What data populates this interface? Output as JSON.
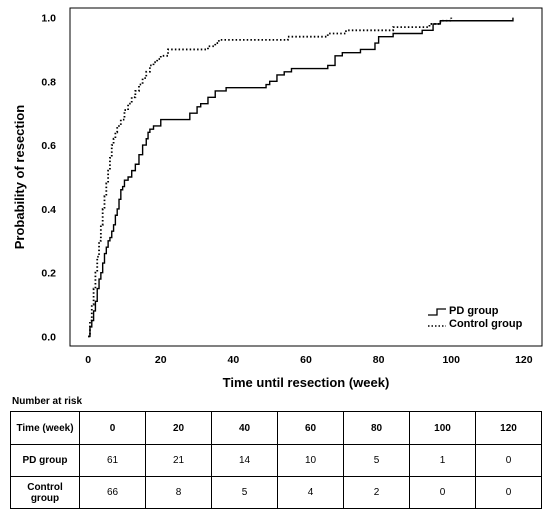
{
  "chart_data": {
    "type": "line",
    "subtype": "step (Kaplan-Meier cumulative incidence)",
    "title": "",
    "xlabel": "Time until resection (week)",
    "ylabel": "Probability of resection",
    "xlim": [
      -5,
      125
    ],
    "ylim": [
      -0.03,
      1.03
    ],
    "xticks": [
      0,
      20,
      40,
      60,
      80,
      100,
      120
    ],
    "yticks": [
      "0.0",
      "0.2",
      "0.4",
      "0.6",
      "0.8",
      "1.0"
    ],
    "grid": false,
    "legend_position": "bottom-right",
    "series": [
      {
        "name": "PD group",
        "line_style": "solid",
        "x": [
          0,
          0.5,
          1,
          1.5,
          2,
          2.5,
          3,
          3.5,
          4,
          4.5,
          5,
          5.5,
          6,
          6.5,
          7,
          7.5,
          8,
          8.5,
          9,
          9.5,
          10,
          11,
          12,
          13,
          14,
          15,
          16,
          16.5,
          17,
          18,
          19,
          20,
          22,
          28,
          30,
          31,
          33,
          35,
          38,
          49,
          50,
          52,
          54,
          56,
          62,
          66,
          68,
          70,
          75,
          79,
          80,
          84,
          90,
          92,
          94,
          95,
          96,
          97,
          117
        ],
        "y": [
          0.0,
          0.03,
          0.05,
          0.08,
          0.11,
          0.15,
          0.18,
          0.2,
          0.23,
          0.26,
          0.28,
          0.3,
          0.31,
          0.33,
          0.35,
          0.38,
          0.4,
          0.43,
          0.46,
          0.47,
          0.49,
          0.5,
          0.52,
          0.54,
          0.57,
          0.6,
          0.62,
          0.64,
          0.65,
          0.66,
          0.66,
          0.68,
          0.68,
          0.7,
          0.72,
          0.73,
          0.75,
          0.77,
          0.78,
          0.79,
          0.8,
          0.82,
          0.83,
          0.84,
          0.84,
          0.85,
          0.88,
          0.89,
          0.9,
          0.92,
          0.94,
          0.95,
          0.95,
          0.96,
          0.96,
          0.98,
          0.98,
          0.99,
          1.0
        ]
      },
      {
        "name": "Control group",
        "line_style": "dotted",
        "x": [
          0,
          0.5,
          1,
          1.5,
          2,
          2.5,
          3,
          3.5,
          4,
          4.5,
          5,
          5.5,
          6,
          6.5,
          7,
          7.5,
          8,
          9,
          10,
          11,
          12,
          13,
          14,
          15,
          16,
          17,
          18,
          19,
          20,
          22,
          28,
          33,
          34,
          35,
          36,
          55,
          66,
          71,
          84,
          94,
          97,
          100
        ],
        "y": [
          0.0,
          0.05,
          0.1,
          0.15,
          0.2,
          0.25,
          0.3,
          0.35,
          0.4,
          0.44,
          0.48,
          0.52,
          0.56,
          0.6,
          0.62,
          0.64,
          0.66,
          0.68,
          0.71,
          0.73,
          0.75,
          0.77,
          0.79,
          0.81,
          0.83,
          0.85,
          0.86,
          0.87,
          0.88,
          0.9,
          0.9,
          0.91,
          0.91,
          0.92,
          0.93,
          0.94,
          0.95,
          0.96,
          0.97,
          0.98,
          0.99,
          1.0
        ]
      }
    ]
  },
  "legend": {
    "pd_label": "PD group",
    "control_label": "Control group"
  },
  "risk_table": {
    "heading": "Number at risk",
    "time_label": "Time (week)",
    "times": [
      "0",
      "20",
      "40",
      "60",
      "80",
      "100",
      "120"
    ],
    "rows": [
      {
        "label": "PD group",
        "values": [
          "61",
          "21",
          "14",
          "10",
          "5",
          "1",
          "0"
        ]
      },
      {
        "label": "Control group",
        "values": [
          "66",
          "8",
          "5",
          "4",
          "2",
          "0",
          "0"
        ]
      }
    ]
  }
}
